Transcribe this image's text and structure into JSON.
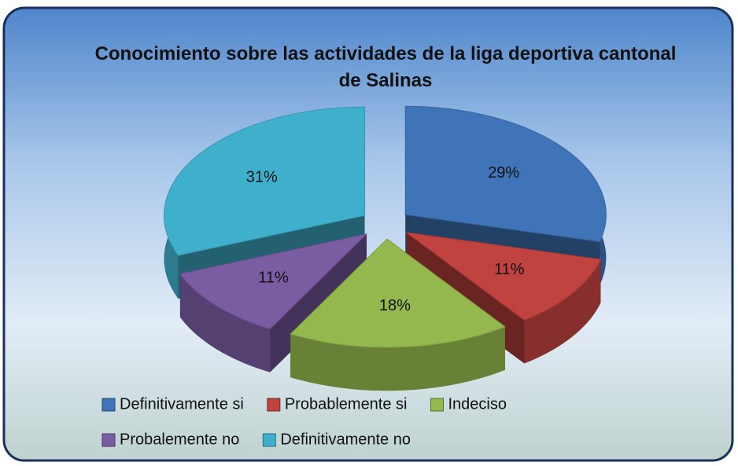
{
  "chart_data": {
    "type": "pie",
    "title": "Conocimiento sobre las actividades de la liga deportiva cantonal de Salinas",
    "categories": [
      "Definitivamente si",
      "Probablemente si",
      "Indeciso",
      "Probalemente no",
      "Definitivamente no"
    ],
    "values": [
      29,
      11,
      18,
      11,
      31
    ],
    "value_labels": [
      "29%",
      "11%",
      "18%",
      "11%",
      "31%"
    ],
    "colors": [
      "#3f74b8",
      "#c0433f",
      "#94b84e",
      "#7a5ca3",
      "#3fb0cc"
    ],
    "legend": "bottom"
  }
}
